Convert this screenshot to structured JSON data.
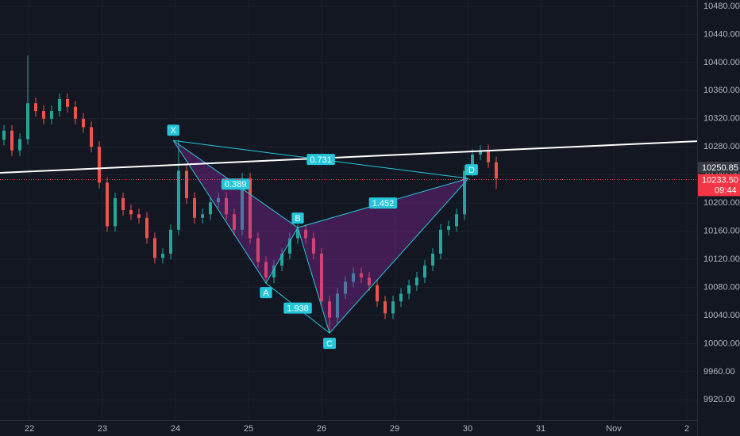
{
  "chart_data": {
    "type": "candlestick",
    "xlim": [
      -0.402,
      9.141
    ],
    "xticks": [
      {
        "value": 0,
        "label": "22"
      },
      {
        "value": 1,
        "label": "23"
      },
      {
        "value": 2,
        "label": "24"
      },
      {
        "value": 3,
        "label": "25"
      },
      {
        "value": 4,
        "label": "26"
      },
      {
        "value": 5,
        "label": "29"
      },
      {
        "value": 6,
        "label": "30"
      },
      {
        "value": 7,
        "label": "31"
      },
      {
        "value": 8,
        "label": "Nov"
      },
      {
        "value": 9,
        "label": "2"
      }
    ],
    "ylim": [
      9891,
      10489
    ],
    "yticks": [
      {
        "value": 9920,
        "label": "9920.00"
      },
      {
        "value": 9960,
        "label": "9960.00"
      },
      {
        "value": 10000,
        "label": "10000.00"
      },
      {
        "value": 10040,
        "label": "10040.00"
      },
      {
        "value": 10080,
        "label": "10080.00"
      },
      {
        "value": 10120,
        "label": "10120.00"
      },
      {
        "value": 10160,
        "label": "10160.00"
      },
      {
        "value": 10200,
        "label": "10200.00"
      },
      {
        "value": 10240,
        "label": "10240.00"
      },
      {
        "value": 10280,
        "label": "10280.00"
      },
      {
        "value": 10320,
        "label": "10320.00"
      },
      {
        "value": 10360,
        "label": "10360.00"
      },
      {
        "value": 10400,
        "label": "10400.00"
      },
      {
        "value": 10440,
        "label": "10440.00"
      },
      {
        "value": 10480,
        "label": "10480.00"
      }
    ],
    "grid": true,
    "up_color": "#26a69a",
    "down_color": "#ef5350",
    "candles": {
      "x": [
        -0.348,
        -0.239,
        -0.13,
        -0.022,
        0.087,
        0.196,
        0.304,
        0.413,
        0.522,
        0.63,
        0.739,
        0.848,
        0.957,
        1.065,
        1.174,
        1.283,
        1.391,
        1.5,
        1.609,
        1.717,
        1.826,
        1.935,
        2.043,
        2.152,
        2.261,
        2.37,
        2.478,
        2.587,
        2.696,
        2.804,
        2.913,
        3.022,
        3.13,
        3.239,
        3.348,
        3.457,
        3.565,
        3.674,
        3.783,
        3.891,
        4.0,
        4.109,
        4.217,
        4.326,
        4.435,
        4.543,
        4.652,
        4.761,
        4.87,
        4.978,
        5.087,
        5.196,
        5.304,
        5.413,
        5.522,
        5.63,
        5.739,
        5.848,
        5.957,
        6.065,
        6.174,
        6.283,
        6.391
      ],
      "open": [
        10290,
        10303,
        10275,
        10291,
        10342,
        10331,
        10320,
        10331,
        10348,
        10337,
        10320,
        10308,
        10280,
        10229,
        10167,
        10207,
        10190,
        10184,
        10179,
        10150,
        10122,
        10128,
        10162,
        10246,
        10207,
        10179,
        10184,
        10201,
        10207,
        10184,
        10162,
        10235,
        10150,
        10116,
        10094,
        10111,
        10128,
        10150,
        10162,
        10150,
        10128,
        10060,
        10037,
        10071,
        10088,
        10100,
        10094,
        10083,
        10060,
        10043,
        10060,
        10071,
        10083,
        10094,
        10111,
        10128,
        10162,
        10167,
        10184,
        10246,
        10269,
        10275,
        10258
      ],
      "high": [
        10311,
        10311,
        10299,
        10410,
        10350,
        10339,
        10339,
        10356,
        10356,
        10345,
        10328,
        10316,
        10288,
        10237,
        10215,
        10215,
        10198,
        10192,
        10187,
        10158,
        10136,
        10170,
        10290,
        10254,
        10215,
        10192,
        10209,
        10215,
        10215,
        10192,
        10243,
        10243,
        10158,
        10124,
        10119,
        10136,
        10158,
        10170,
        10170,
        10158,
        10136,
        10068,
        10079,
        10096,
        10108,
        10108,
        10102,
        10091,
        10068,
        10068,
        10079,
        10091,
        10102,
        10119,
        10136,
        10170,
        10175,
        10192,
        10254,
        10277,
        10282,
        10283,
        10266
      ],
      "low": [
        10282,
        10267,
        10267,
        10283,
        10323,
        10312,
        10312,
        10323,
        10329,
        10312,
        10300,
        10272,
        10221,
        10159,
        10159,
        10182,
        10176,
        10171,
        10142,
        10114,
        10114,
        10120,
        10154,
        10199,
        10171,
        10171,
        10176,
        10193,
        10176,
        10154,
        10154,
        10142,
        10108,
        10086,
        10086,
        10103,
        10120,
        10142,
        10142,
        10120,
        10052,
        10015,
        10029,
        10063,
        10080,
        10086,
        10075,
        10052,
        10035,
        10035,
        10052,
        10063,
        10075,
        10086,
        10103,
        10120,
        10154,
        10159,
        10176,
        10238,
        10261,
        10250,
        10220
      ],
      "close": [
        10303,
        10275,
        10291,
        10342,
        10331,
        10320,
        10331,
        10348,
        10337,
        10320,
        10308,
        10280,
        10229,
        10167,
        10207,
        10190,
        10184,
        10179,
        10150,
        10122,
        10128,
        10162,
        10246,
        10207,
        10179,
        10184,
        10201,
        10207,
        10184,
        10162,
        10235,
        10150,
        10116,
        10094,
        10111,
        10128,
        10150,
        10162,
        10150,
        10128,
        10060,
        10037,
        10071,
        10088,
        10100,
        10094,
        10083,
        10060,
        10043,
        10060,
        10071,
        10083,
        10094,
        10111,
        10128,
        10162,
        10167,
        10184,
        10246,
        10269,
        10275,
        10258,
        10235
      ]
    },
    "trendline": {
      "x": [
        -0.402,
        9.141
      ],
      "y": [
        10243,
        10288
      ],
      "color": "#ffffff"
    },
    "pattern": {
      "color": "#26c6da",
      "fill": "#9c27b0",
      "points": [
        {
          "label": "X",
          "x": 1.97,
          "y": 10289
        },
        {
          "label": "A",
          "x": 3.239,
          "y": 10086
        },
        {
          "label": "B",
          "x": 3.674,
          "y": 10165
        },
        {
          "label": "C",
          "x": 4.109,
          "y": 10015
        },
        {
          "label": "D",
          "x": 6.01,
          "y": 10235
        }
      ],
      "ratios": [
        "0.389",
        "0.731",
        "1.938",
        "1.452"
      ]
    },
    "marker_price": {
      "value": 10250.85,
      "label": "10250.85"
    },
    "last_price": {
      "value": 10233.5,
      "label": "10233.50",
      "countdown": "09:44",
      "color": "#f23645"
    }
  }
}
